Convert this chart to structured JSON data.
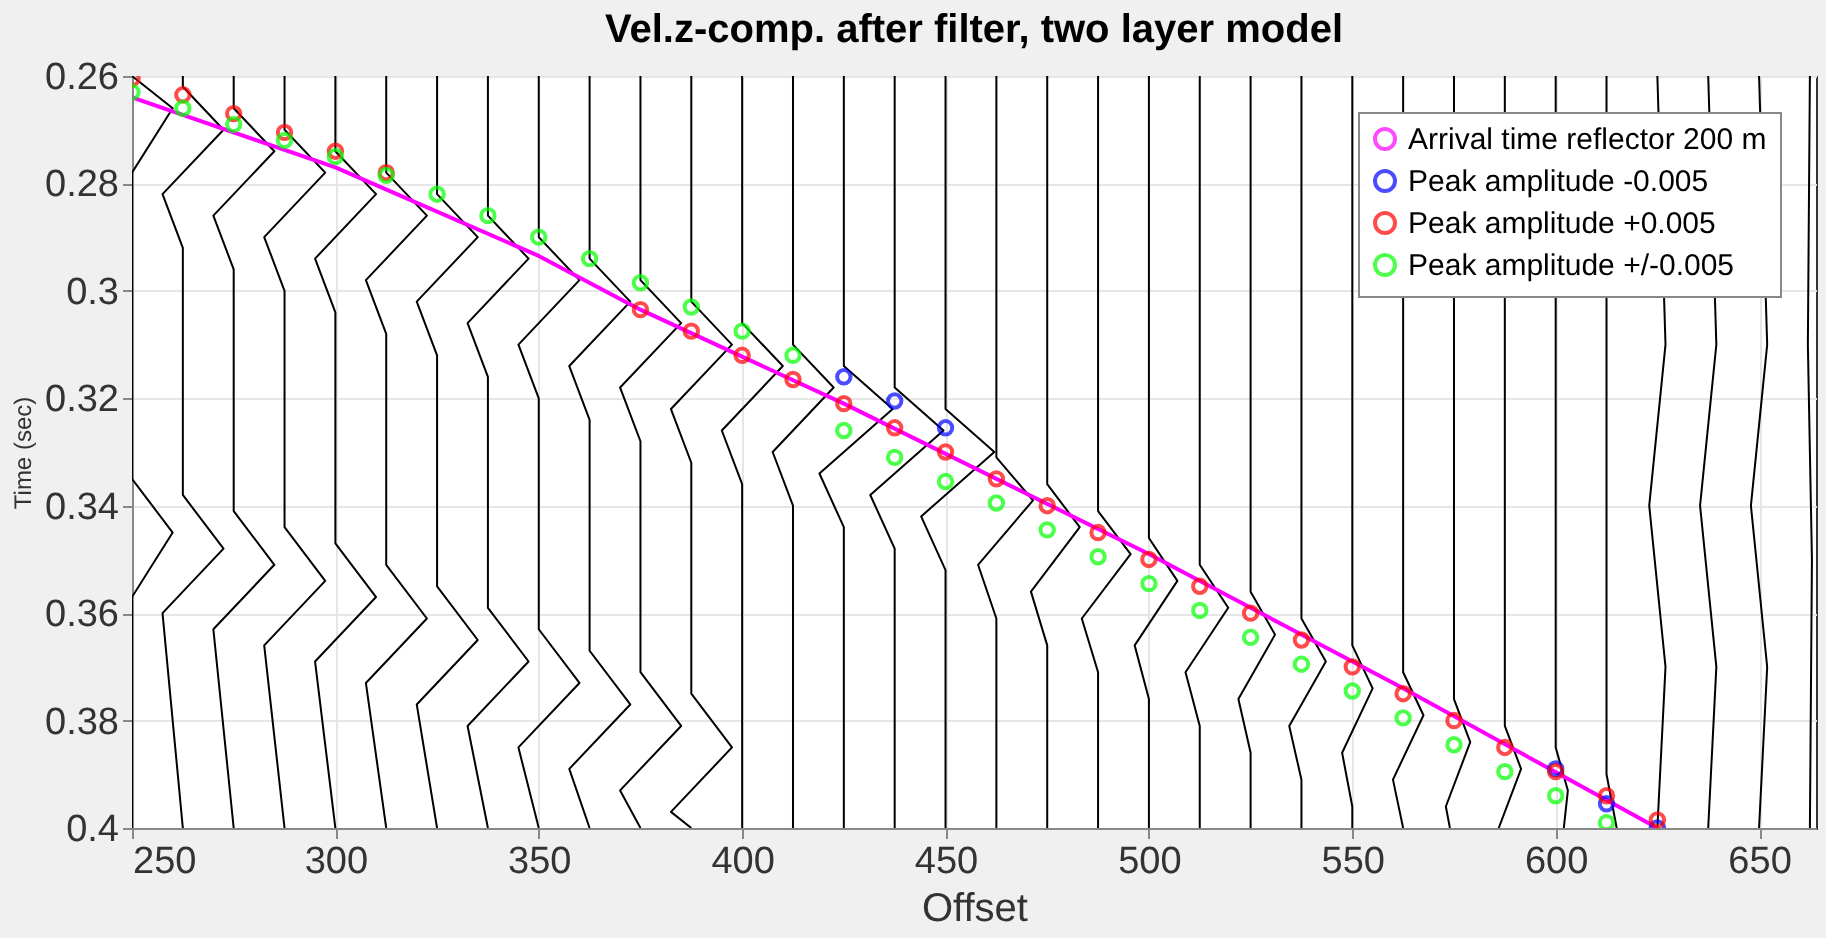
{
  "chart_data": {
    "type": "line",
    "title": "Vel.z-comp. after filter, two layer model",
    "xlabel": "Offset",
    "ylabel": "Time (sec)",
    "xlim": [
      250,
      664
    ],
    "ylim": [
      0.4,
      0.26
    ],
    "xticks": [
      250,
      300,
      350,
      400,
      450,
      500,
      550,
      600,
      650
    ],
    "yticks": [
      0.26,
      0.28,
      0.3,
      0.32,
      0.34,
      0.36,
      0.38,
      0.4
    ],
    "grid": true,
    "legend": "top right",
    "series": [
      {
        "color": "#000000",
        "x": [
          250,
          260,
          250,
          250,
          250,
          260,
          250,
          250
        ],
        "values": [
          0.26,
          0.266,
          0.278,
          0.288,
          0.335,
          0.345,
          0.357,
          0.4
        ]
      },
      {
        "type": "line",
        "color": "#000000",
        "x": [
          262.5,
          262.5,
          272.5,
          257.5,
          262.5,
          262.5,
          272.5,
          257.5,
          262.5
        ],
        "values": [
          0.26,
          0.262,
          0.27,
          0.282,
          0.292,
          0.338,
          0.348,
          0.36,
          0.4
        ]
      },
      {
        "type": "line",
        "color": "#000000",
        "x": [
          275,
          275,
          285,
          270,
          275,
          275,
          285,
          270,
          275
        ],
        "values": [
          0.26,
          0.266,
          0.274,
          0.286,
          0.296,
          0.341,
          0.351,
          0.363,
          0.4
        ]
      },
      {
        "type": "line",
        "color": "#000000",
        "x": [
          287.5,
          287.5,
          297.5,
          282.5,
          287.5,
          287.5,
          297.5,
          282.5,
          287.5
        ],
        "values": [
          0.26,
          0.27,
          0.278,
          0.29,
          0.3,
          0.344,
          0.354,
          0.366,
          0.4
        ]
      },
      {
        "type": "line",
        "color": "#000000",
        "x": [
          300,
          300,
          310,
          295,
          300,
          300,
          310,
          295,
          300
        ],
        "values": [
          0.26,
          0.274,
          0.282,
          0.294,
          0.304,
          0.347,
          0.357,
          0.369,
          0.4
        ]
      },
      {
        "type": "line",
        "color": "#000000",
        "x": [
          312.5,
          312.5,
          322.5,
          307.5,
          312.5,
          312.5,
          322.5,
          307.5,
          312.5
        ],
        "values": [
          0.26,
          0.278,
          0.286,
          0.298,
          0.308,
          0.351,
          0.361,
          0.373,
          0.4
        ]
      },
      {
        "type": "line",
        "color": "#000000",
        "x": [
          325,
          325,
          335,
          320,
          325,
          325,
          335,
          320,
          325
        ],
        "values": [
          0.26,
          0.282,
          0.29,
          0.302,
          0.312,
          0.355,
          0.365,
          0.377,
          0.4
        ]
      },
      {
        "type": "line",
        "color": "#000000",
        "x": [
          337.5,
          337.5,
          347.5,
          332.5,
          337.5,
          337.5,
          347.5,
          332.5,
          337.5
        ],
        "values": [
          0.26,
          0.286,
          0.294,
          0.306,
          0.316,
          0.359,
          0.369,
          0.381,
          0.4
        ]
      },
      {
        "type": "line",
        "color": "#000000",
        "x": [
          350,
          350,
          360,
          345,
          350,
          350,
          360,
          345,
          350
        ],
        "values": [
          0.26,
          0.29,
          0.298,
          0.31,
          0.32,
          0.363,
          0.373,
          0.385,
          0.4
        ]
      },
      {
        "type": "line",
        "color": "#000000",
        "x": [
          362.5,
          362.5,
          372.5,
          357.5,
          362.5,
          362.5,
          372.5,
          357.5,
          362.5
        ],
        "values": [
          0.26,
          0.294,
          0.302,
          0.314,
          0.324,
          0.367,
          0.377,
          0.389,
          0.4
        ]
      },
      {
        "type": "line",
        "color": "#000000",
        "x": [
          375,
          375,
          385,
          370,
          375,
          375,
          385,
          370,
          375
        ],
        "values": [
          0.26,
          0.298,
          0.306,
          0.318,
          0.328,
          0.371,
          0.381,
          0.393,
          0.4
        ]
      },
      {
        "type": "line",
        "color": "#000000",
        "x": [
          387.5,
          387.5,
          397.5,
          382.5,
          387.5,
          387.5,
          397.5,
          382.5,
          387.5
        ],
        "values": [
          0.26,
          0.302,
          0.31,
          0.322,
          0.332,
          0.375,
          0.385,
          0.397,
          0.4
        ]
      },
      {
        "type": "line",
        "color": "#000000",
        "x": [
          400,
          400,
          410,
          395,
          400,
          400
        ],
        "values": [
          0.26,
          0.306,
          0.314,
          0.326,
          0.336,
          0.4
        ]
      },
      {
        "type": "line",
        "color": "#000000",
        "x": [
          412.5,
          412.5,
          422.5,
          407.5,
          412.5,
          412.5
        ],
        "values": [
          0.26,
          0.31,
          0.318,
          0.33,
          0.34,
          0.4
        ]
      },
      {
        "type": "line",
        "color": "#000000",
        "x": [
          425,
          425,
          437,
          419,
          425,
          425
        ],
        "values": [
          0.26,
          0.314,
          0.322,
          0.334,
          0.344,
          0.4
        ]
      },
      {
        "type": "line",
        "color": "#000000",
        "x": [
          437.5,
          437.5,
          449.5,
          431.5,
          437.5,
          437.5
        ],
        "values": [
          0.26,
          0.318,
          0.326,
          0.338,
          0.348,
          0.4
        ]
      },
      {
        "type": "line",
        "color": "#000000",
        "x": [
          450,
          450,
          462,
          444,
          450,
          450
        ],
        "values": [
          0.26,
          0.322,
          0.33,
          0.342,
          0.352,
          0.4
        ]
      },
      {
        "type": "line",
        "color": "#000000",
        "x": [
          462.5,
          462.5,
          471.5,
          458,
          462.5,
          462.5
        ],
        "values": [
          0.26,
          0.331,
          0.339,
          0.351,
          0.361,
          0.4
        ]
      },
      {
        "type": "line",
        "color": "#000000",
        "x": [
          475,
          475,
          483,
          471,
          475,
          475
        ],
        "values": [
          0.26,
          0.336,
          0.344,
          0.356,
          0.366,
          0.4
        ]
      },
      {
        "type": "line",
        "color": "#000000",
        "x": [
          487.5,
          487.5,
          495.5,
          483.5,
          487.5,
          487.5
        ],
        "values": [
          0.26,
          0.341,
          0.349,
          0.361,
          0.371,
          0.4
        ]
      },
      {
        "type": "line",
        "color": "#000000",
        "x": [
          500,
          500,
          507,
          496.5,
          500,
          500
        ],
        "values": [
          0.26,
          0.346,
          0.354,
          0.366,
          0.376,
          0.4
        ]
      },
      {
        "type": "line",
        "color": "#000000",
        "x": [
          512.5,
          512.5,
          519.5,
          509,
          512.5,
          512.5
        ],
        "values": [
          0.26,
          0.351,
          0.359,
          0.371,
          0.381,
          0.4
        ]
      },
      {
        "type": "line",
        "color": "#000000",
        "x": [
          525,
          525,
          531,
          522,
          525,
          525
        ],
        "values": [
          0.26,
          0.356,
          0.364,
          0.376,
          0.386,
          0.4
        ]
      },
      {
        "type": "line",
        "color": "#000000",
        "x": [
          537.5,
          537.5,
          543.5,
          534.5,
          537.5,
          537.5
        ],
        "values": [
          0.26,
          0.361,
          0.369,
          0.381,
          0.391,
          0.4
        ]
      },
      {
        "type": "line",
        "color": "#000000",
        "x": [
          550,
          550,
          555,
          547.5,
          550,
          550
        ],
        "values": [
          0.26,
          0.366,
          0.374,
          0.386,
          0.396,
          0.4
        ]
      },
      {
        "type": "line",
        "color": "#000000",
        "x": [
          562.5,
          562.5,
          567.5,
          560,
          562.5
        ],
        "values": [
          0.26,
          0.371,
          0.379,
          0.391,
          0.4
        ]
      },
      {
        "type": "line",
        "color": "#000000",
        "x": [
          575,
          575,
          579,
          573,
          574
        ],
        "values": [
          0.26,
          0.376,
          0.384,
          0.396,
          0.4
        ]
      },
      {
        "type": "line",
        "color": "#000000",
        "x": [
          587.5,
          587.5,
          591.5,
          586
        ],
        "values": [
          0.26,
          0.381,
          0.389,
          0.4
        ]
      },
      {
        "type": "line",
        "color": "#000000",
        "x": [
          600,
          600,
          603,
          602
        ],
        "values": [
          0.26,
          0.385,
          0.393,
          0.4
        ]
      },
      {
        "type": "line",
        "color": "#000000",
        "x": [
          612.5,
          612.5,
          615
        ],
        "values": [
          0.26,
          0.39,
          0.4
        ]
      },
      {
        "color": "#000000",
        "x": [
          625,
          627,
          623,
          627,
          625
        ],
        "values": [
          0.26,
          0.31,
          0.34,
          0.37,
          0.4
        ]
      },
      {
        "color": "#000000",
        "x": [
          637.5,
          639.5,
          635.5,
          639.5,
          637.5
        ],
        "values": [
          0.26,
          0.31,
          0.34,
          0.37,
          0.4
        ]
      },
      {
        "color": "#000000",
        "x": [
          650,
          652,
          648,
          652,
          650
        ],
        "values": [
          0.26,
          0.31,
          0.34,
          0.37,
          0.4
        ]
      },
      {
        "color": "#000000",
        "x": [
          662.5,
          662,
          663,
          662.5
        ],
        "values": [
          0.26,
          0.31,
          0.35,
          0.4
        ]
      },
      {
        "type": "line",
        "name": "Arrival time reflector 200 m",
        "color": "#ff00ff",
        "x": [
          250,
          300,
          350,
          375,
          425,
          500,
          562.5,
          625
        ],
        "values": [
          0.264,
          0.277,
          0.2935,
          0.3035,
          0.321,
          0.349,
          0.374,
          0.4
        ]
      },
      {
        "type": "scatter",
        "name": "Peak amplitude -0.005",
        "color": "#0000ff",
        "marker": "circle",
        "x": [
          425,
          437.5,
          450,
          600,
          612.5,
          625
        ],
        "values": [
          0.316,
          0.3205,
          0.3255,
          0.389,
          0.3955,
          0.4
        ]
      },
      {
        "type": "scatter",
        "name": "Peak amplitude +0.005",
        "color": "#ff0000",
        "marker": "circle",
        "x": [
          250,
          262.5,
          275,
          287.5,
          300,
          312.5,
          375,
          387.5,
          400,
          412.5,
          425,
          437.5,
          450,
          462.5,
          475,
          487.5,
          500,
          512.5,
          525,
          537.5,
          550,
          562.5,
          575,
          587.5,
          600,
          612.5,
          625
        ],
        "values": [
          0.2605,
          0.2635,
          0.267,
          0.2705,
          0.274,
          0.278,
          0.3035,
          0.3075,
          0.312,
          0.3165,
          0.321,
          0.3255,
          0.33,
          0.335,
          0.34,
          0.345,
          0.35,
          0.355,
          0.36,
          0.365,
          0.37,
          0.375,
          0.38,
          0.385,
          0.3895,
          0.394,
          0.3985
        ]
      },
      {
        "type": "scatter",
        "name": "Peak amplitude +/-0.005",
        "color": "#00ff00",
        "marker": "circle",
        "x": [
          250,
          262.5,
          275,
          287.5,
          300,
          312.5,
          325,
          337.5,
          350,
          362.5,
          375,
          387.5,
          400,
          412.5,
          425,
          437.5,
          450,
          462.5,
          475,
          487.5,
          500,
          512.5,
          525,
          537.5,
          550,
          562.5,
          575,
          587.5,
          600,
          612.5
        ],
        "values": [
          0.263,
          0.266,
          0.269,
          0.272,
          0.275,
          0.2785,
          0.282,
          0.286,
          0.29,
          0.294,
          0.2985,
          0.303,
          0.3075,
          0.312,
          0.326,
          0.331,
          0.3355,
          0.3395,
          0.3445,
          0.3495,
          0.3545,
          0.3595,
          0.3645,
          0.3695,
          0.3745,
          0.3795,
          0.3845,
          0.3895,
          0.394,
          0.399
        ]
      }
    ]
  }
}
